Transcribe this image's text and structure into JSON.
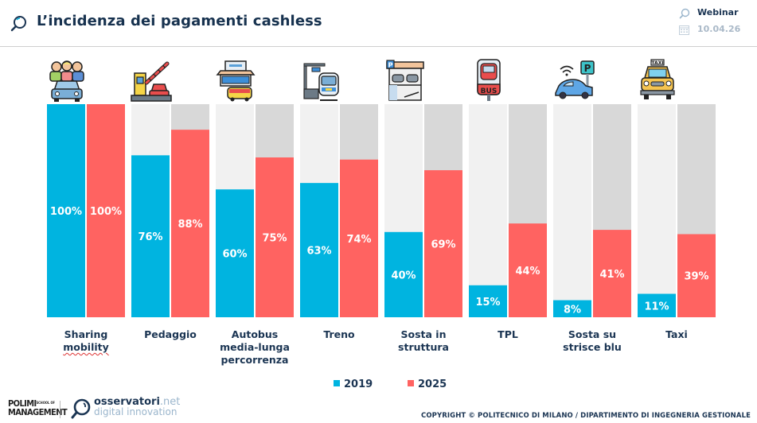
{
  "header": {
    "title": "L’incidenza dei pagamenti cashless",
    "event_label": "Webinar",
    "date": "10.04.26",
    "icons": {
      "title": "magnifier-icon",
      "event": "magnifier-icon",
      "date": "calendar-icon"
    }
  },
  "colors": {
    "series_2019": "#00b4e0",
    "series_2025": "#ff6361",
    "bg_2019": "#f1f1f1",
    "bg_2025": "#d8d8d8",
    "text_dark": "#1b3553"
  },
  "chart_data": {
    "type": "bar",
    "title": "L’incidenza dei pagamenti cashless",
    "xlabel": "",
    "ylabel": "",
    "ylim": [
      0,
      100
    ],
    "grid": false,
    "legend_position": "bottom-center",
    "categories": [
      "Sharing mobility",
      "Pedaggio",
      "Autobus media-lunga percorrenza",
      "Treno",
      "Sosta in struttura",
      "TPL",
      "Sosta su strisce blu",
      "Taxi"
    ],
    "category_lines": [
      [
        "Sharing",
        "mobility"
      ],
      [
        "Pedaggio"
      ],
      [
        "Autobus",
        "media-lunga",
        "percorrenza"
      ],
      [
        "Treno"
      ],
      [
        "Sosta in",
        "struttura"
      ],
      [
        "TPL"
      ],
      [
        "Sosta su",
        "strisce blu"
      ],
      [
        "Taxi"
      ]
    ],
    "category_icons": [
      "car-sharing-people-icon",
      "toll-booth-icon",
      "bus-station-icon",
      "train-station-icon",
      "parking-garage-icon",
      "bus-stop-sign-icon",
      "smart-parking-car-icon",
      "taxi-icon"
    ],
    "series": [
      {
        "name": "2019",
        "values": [
          100,
          76,
          60,
          63,
          40,
          15,
          8,
          11
        ],
        "labels": [
          "100%",
          "76%",
          "60%",
          "63%",
          "40%",
          "15%",
          "8%",
          "11%"
        ]
      },
      {
        "name": "2025",
        "values": [
          100,
          88,
          75,
          74,
          69,
          44,
          41,
          39
        ],
        "labels": [
          "100%",
          "88%",
          "75%",
          "74%",
          "69%",
          "44%",
          "41%",
          "39%"
        ]
      }
    ],
    "legend": [
      "2019",
      "2025"
    ]
  },
  "footer": {
    "logo1_line1": "POLIMI",
    "logo1_small": "SCHOOL OF",
    "logo1_line2": "MANAGEMENT",
    "logo2_main": "osservatori",
    "logo2_tld": ".net",
    "logo2_sub": "digital innovation",
    "copyright": "COPYRIGHT © POLITECNICO DI MILANO / DIPARTIMENTO DI INGEGNERIA GESTIONALE"
  }
}
